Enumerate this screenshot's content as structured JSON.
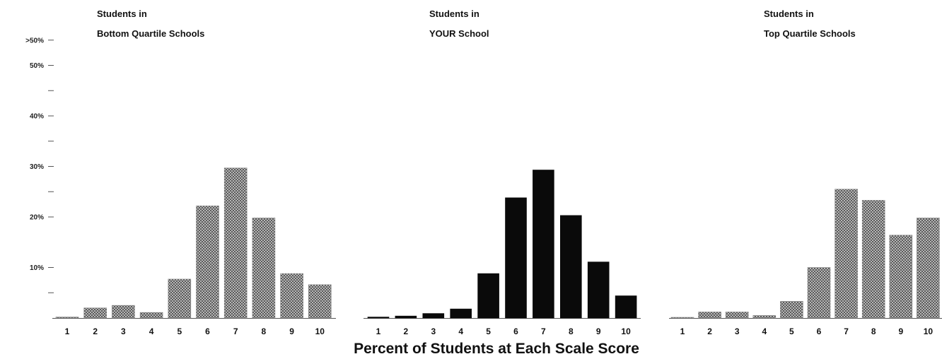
{
  "caption": "Percent of Students at Each Scale Score",
  "y_axis": {
    "ticks": [
      {
        "label": ">50%",
        "value": 55
      },
      {
        "label": "50%",
        "value": 50
      },
      {
        "label": "",
        "value": 45
      },
      {
        "label": "40%",
        "value": 40
      },
      {
        "label": "",
        "value": 35
      },
      {
        "label": "30%",
        "value": 30
      },
      {
        "label": "",
        "value": 25
      },
      {
        "label": "20%",
        "value": 20
      },
      {
        "label": "10%",
        "value": 10
      },
      {
        "label": "",
        "value": 5
      }
    ]
  },
  "colors": {
    "hatch_fill": "#cfcfcf",
    "hatch_line": "#444444",
    "solid_fill": "#0a0a0a",
    "axis": "#555555"
  },
  "chart_data": [
    {
      "type": "bar",
      "title_line1": "Students in",
      "title_line2": "Bottom Quartile Schools",
      "style": "hatched",
      "categories": [
        "1",
        "2",
        "3",
        "4",
        "5",
        "6",
        "7",
        "8",
        "9",
        "10"
      ],
      "values": [
        0.2,
        2.0,
        2.5,
        1.1,
        7.7,
        22.2,
        29.7,
        19.8,
        8.8,
        6.6
      ],
      "ylim": [
        0,
        55
      ]
    },
    {
      "type": "bar",
      "title_line1": "Students in",
      "title_line2": "YOUR School",
      "style": "solid",
      "categories": [
        "1",
        "2",
        "3",
        "4",
        "5",
        "6",
        "7",
        "8",
        "9",
        "10"
      ],
      "values": [
        0.2,
        0.4,
        0.9,
        1.8,
        8.8,
        23.8,
        29.3,
        20.3,
        11.1,
        4.4
      ],
      "ylim": [
        0,
        55
      ]
    },
    {
      "type": "bar",
      "title_line1": "Students in",
      "title_line2": "Top Quartile Schools",
      "style": "hatched",
      "categories": [
        "1",
        "2",
        "3",
        "4",
        "5",
        "6",
        "7",
        "8",
        "9",
        "10"
      ],
      "values": [
        0.1,
        1.2,
        1.2,
        0.5,
        3.3,
        10.0,
        25.5,
        23.3,
        16.4,
        19.8
      ],
      "ylim": [
        0,
        55
      ]
    }
  ]
}
